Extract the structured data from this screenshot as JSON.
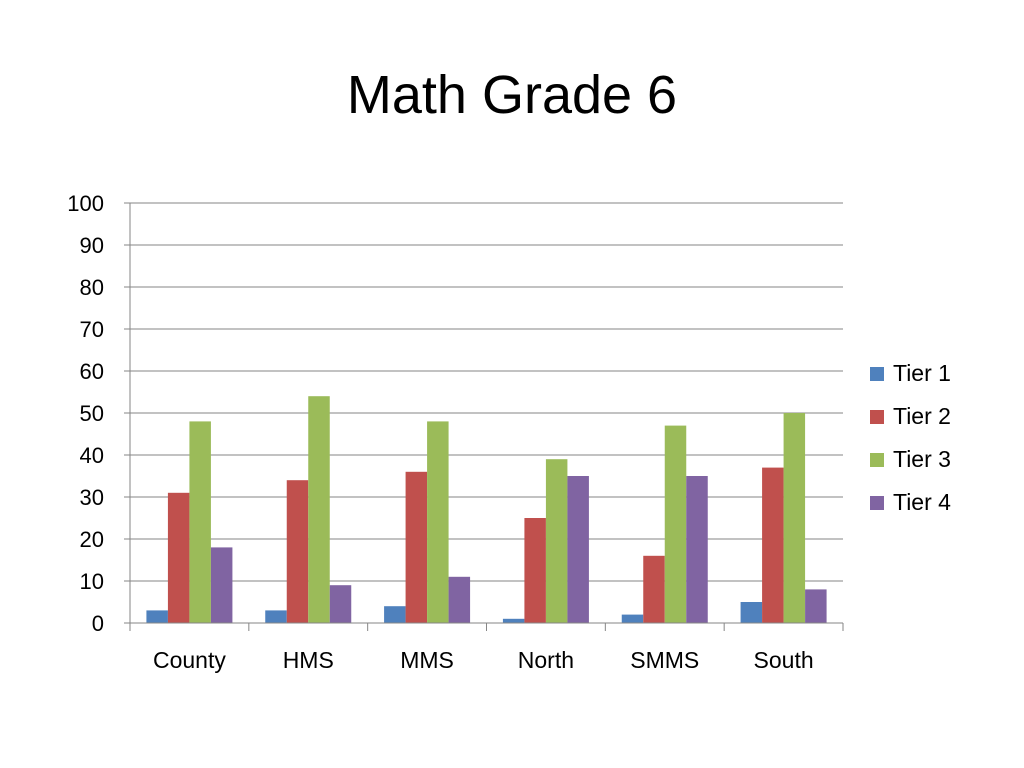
{
  "chart_data": {
    "type": "bar",
    "title": "Math Grade 6",
    "xlabel": "",
    "ylabel": "",
    "categories": [
      "County",
      "HMS",
      "MMS",
      "North",
      "SMMS",
      "South"
    ],
    "series": [
      {
        "name": "Tier 1",
        "color": "#4F81BD",
        "values": [
          3,
          3,
          4,
          1,
          2,
          5
        ]
      },
      {
        "name": "Tier 2",
        "color": "#C0504D",
        "values": [
          31,
          34,
          36,
          25,
          16,
          37
        ]
      },
      {
        "name": "Tier 3",
        "color": "#9BBB59",
        "values": [
          48,
          54,
          48,
          39,
          47,
          50
        ]
      },
      {
        "name": "Tier 4",
        "color": "#8064A2",
        "values": [
          18,
          9,
          11,
          35,
          35,
          8
        ]
      }
    ],
    "ylim": [
      0,
      100
    ],
    "yticks": [
      0,
      10,
      20,
      30,
      40,
      50,
      60,
      70,
      80,
      90,
      100
    ],
    "grid": true,
    "legend": "right"
  }
}
